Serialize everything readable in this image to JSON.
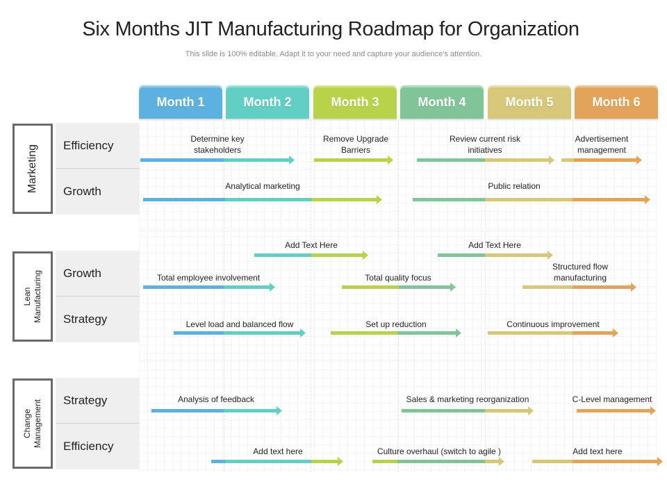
{
  "title": "Six Months JIT Manufacturing Roadmap for Organization",
  "subtitle": "This slide is 100% editable. Adapt it to your need and capture your audience’s attention.",
  "colors": {
    "m1": "#5db1df",
    "m2": "#62cfc4",
    "m3": "#b8d34a",
    "m4": "#80c497",
    "m5": "#d7c77a",
    "m6": "#e2a35a"
  },
  "months": [
    "Month 1",
    "Month 2",
    "Month 3",
    "Month 4",
    "Month 5",
    "Month 6"
  ],
  "groups": [
    {
      "label": "Marketing",
      "rows": [
        "Efficiency",
        "Growth"
      ]
    },
    {
      "label": "Lean\nManufacturing",
      "rows": [
        "Growth",
        "Strategy"
      ]
    },
    {
      "label": "Change\nManagement",
      "rows": [
        "Strategy",
        "Efficiency"
      ]
    }
  ],
  "tasks": [
    {
      "text": "Determine key\nstakeholders"
    },
    {
      "text": "Remove Upgrade\nBarriers"
    },
    {
      "text": "Review current risk\ninitiatives"
    },
    {
      "text": "Advertisement\nmanagement"
    },
    {
      "text": "Analytical marketing"
    },
    {
      "text": "Public relation"
    },
    {
      "text": "Add Text Here"
    },
    {
      "text": "Add Text Here"
    },
    {
      "text": "Total employee involvement"
    },
    {
      "text": "Total quality focus"
    },
    {
      "text": "Structured flow\nmanufacturing"
    },
    {
      "text": "Level load and balanced flow"
    },
    {
      "text": "Set up reduction"
    },
    {
      "text": "Continuous improvement"
    },
    {
      "text": "Analysis of feedback"
    },
    {
      "text": "Sales & marketing reorganization"
    },
    {
      "text": "C-Level management"
    },
    {
      "text": "Add text here"
    },
    {
      "text": "Culture overhaul (switch to agile )"
    },
    {
      "text": "Add text here"
    }
  ]
}
